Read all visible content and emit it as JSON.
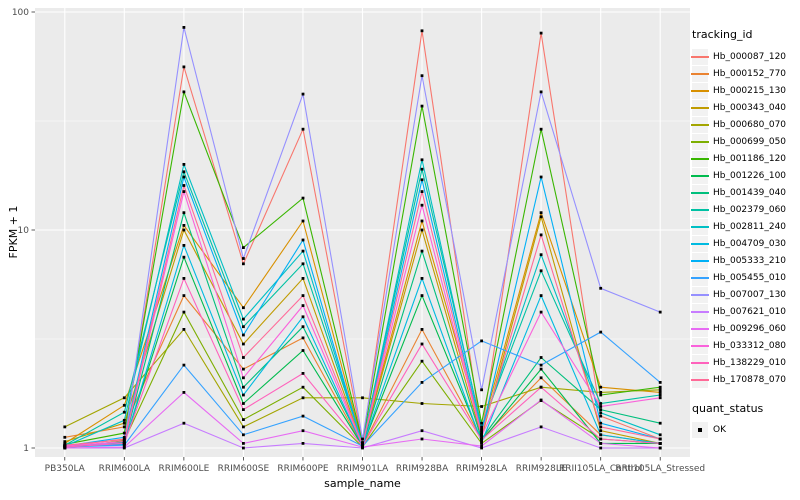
{
  "figure": {
    "background": "#FFFFFF",
    "panel_background": "#EBEBEB",
    "gridline_color": "#FFFFFF",
    "axis_text_color": "#4D4D4D",
    "tick_color": "#333333",
    "point_color": "#000000"
  },
  "legend": {
    "tracking_title": "tracking_id",
    "quant_title": "quant_status",
    "quant_value": "OK",
    "key_background": "#F2F2F2"
  },
  "chart_data": {
    "type": "line",
    "title": "",
    "xlabel": "sample_name",
    "ylabel": "FPKM + 1",
    "y_scale": "log10",
    "y_ticks": [
      1,
      10,
      100
    ],
    "y_minor_ticks": [
      3.1623,
      31.623
    ],
    "ylim": [
      0.91,
      104
    ],
    "grid": true,
    "legend_position": "right",
    "point_shape": "square",
    "point_status_label": "OK",
    "categories": [
      "PB350LA",
      "RRIM600LA",
      "RRIM600LE",
      "RRIM600SE",
      "RRIM600PE",
      "RRIM901LA",
      "RRIM928BA",
      "RRIM928LA",
      "RRIM928LE",
      "RRII105LA_Control",
      "RRII105LA_Stressed"
    ],
    "series": [
      {
        "name": "Hb_000087_120",
        "color": "#F8766D",
        "values": [
          1.02,
          1.1,
          56,
          7.0,
          29,
          1.05,
          82,
          1.15,
          80,
          1.4,
          1.1
        ]
      },
      {
        "name": "Hb_000152_770",
        "color": "#EA8331",
        "values": [
          1.12,
          1.25,
          5.0,
          2.3,
          3.2,
          1.02,
          3.5,
          1.1,
          2.1,
          1.15,
          1.05
        ]
      },
      {
        "name": "Hb_000215_130",
        "color": "#D89000",
        "values": [
          1.05,
          1.57,
          10.5,
          4.4,
          11,
          1.04,
          11,
          1.2,
          12,
          1.9,
          1.8
        ]
      },
      {
        "name": "Hb_000343_040",
        "color": "#C09B00",
        "values": [
          1.07,
          1.3,
          10.0,
          3.0,
          6.0,
          1.03,
          10,
          1.12,
          11.5,
          1.2,
          1.05
        ]
      },
      {
        "name": "Hb_000680_070",
        "color": "#A3A500",
        "values": [
          1.25,
          1.7,
          3.5,
          1.25,
          1.7,
          1.7,
          1.6,
          1.55,
          1.9,
          1.8,
          1.85
        ]
      },
      {
        "name": "Hb_000699_050",
        "color": "#7CAE00",
        "values": [
          1.0,
          1.08,
          4.2,
          1.35,
          1.9,
          1.01,
          2.5,
          1.05,
          1.65,
          1.1,
          1.05
        ]
      },
      {
        "name": "Hb_001186_120",
        "color": "#39B600",
        "values": [
          1.04,
          1.17,
          43,
          8.3,
          14,
          1.06,
          37,
          1.3,
          29,
          1.75,
          1.9
        ]
      },
      {
        "name": "Hb_001226_100",
        "color": "#00BB4E",
        "values": [
          1.01,
          1.05,
          7.5,
          1.6,
          2.8,
          1.02,
          5.0,
          1.08,
          2.3,
          1.05,
          1.05
        ]
      },
      {
        "name": "Hb_001439_040",
        "color": "#00BF7D",
        "values": [
          1.02,
          1.06,
          12,
          1.9,
          3.6,
          1.03,
          8.0,
          1.1,
          2.6,
          1.5,
          1.3
        ]
      },
      {
        "name": "Hb_002379_060",
        "color": "#00C1A3",
        "values": [
          1.03,
          1.46,
          18.5,
          3.6,
          7.0,
          1.05,
          19,
          1.25,
          6.5,
          1.6,
          1.75
        ]
      },
      {
        "name": "Hb_002811_240",
        "color": "#00BFC4",
        "values": [
          1.02,
          1.34,
          20,
          3.9,
          8.0,
          1.04,
          21,
          1.22,
          7.7,
          1.45,
          1.15
        ]
      },
      {
        "name": "Hb_004709_030",
        "color": "#00BAE0",
        "values": [
          1.01,
          1.04,
          8.5,
          1.75,
          4.0,
          1.02,
          6.0,
          1.06,
          5.0,
          1.15,
          1.05
        ]
      },
      {
        "name": "Hb_005333_210",
        "color": "#00B0F6",
        "values": [
          1.02,
          1.12,
          17.5,
          3.3,
          9.0,
          1.03,
          17,
          1.18,
          17.5,
          1.3,
          1.1
        ]
      },
      {
        "name": "Hb_005455_010",
        "color": "#35A2FF",
        "values": [
          1.01,
          1.03,
          2.4,
          1.15,
          1.4,
          1.02,
          2.0,
          3.1,
          2.4,
          3.4,
          2.0
        ]
      },
      {
        "name": "Hb_007007_130",
        "color": "#9590FF",
        "values": [
          1.03,
          1.05,
          85,
          7.4,
          42,
          1.1,
          51,
          1.85,
          43,
          5.4,
          4.2
        ]
      },
      {
        "name": "Hb_007621_010",
        "color": "#C77CFF",
        "values": [
          1.0,
          1.0,
          1.3,
          1.0,
          1.05,
          1.0,
          1.2,
          1.0,
          1.25,
          1.0,
          1.0
        ]
      },
      {
        "name": "Hb_009296_060",
        "color": "#E76BF3",
        "values": [
          1.0,
          1.01,
          1.8,
          1.05,
          1.2,
          1.01,
          1.1,
          1.02,
          1.66,
          1.05,
          1.0
        ]
      },
      {
        "name": "Hb_033312_080",
        "color": "#FA62DB",
        "values": [
          1.02,
          1.07,
          15,
          2.1,
          4.5,
          1.03,
          13,
          1.14,
          4.2,
          1.55,
          1.7
        ]
      },
      {
        "name": "Hb_138229_010",
        "color": "#FF62BC",
        "values": [
          1.01,
          1.05,
          6.0,
          1.5,
          2.2,
          1.02,
          3.0,
          1.09,
          1.9,
          1.1,
          1.05
        ]
      },
      {
        "name": "Hb_170878_070",
        "color": "#FF6A98",
        "values": [
          1.03,
          1.09,
          16,
          2.6,
          5.0,
          1.04,
          15,
          1.16,
          9.5,
          1.25,
          1.1
        ]
      }
    ]
  }
}
